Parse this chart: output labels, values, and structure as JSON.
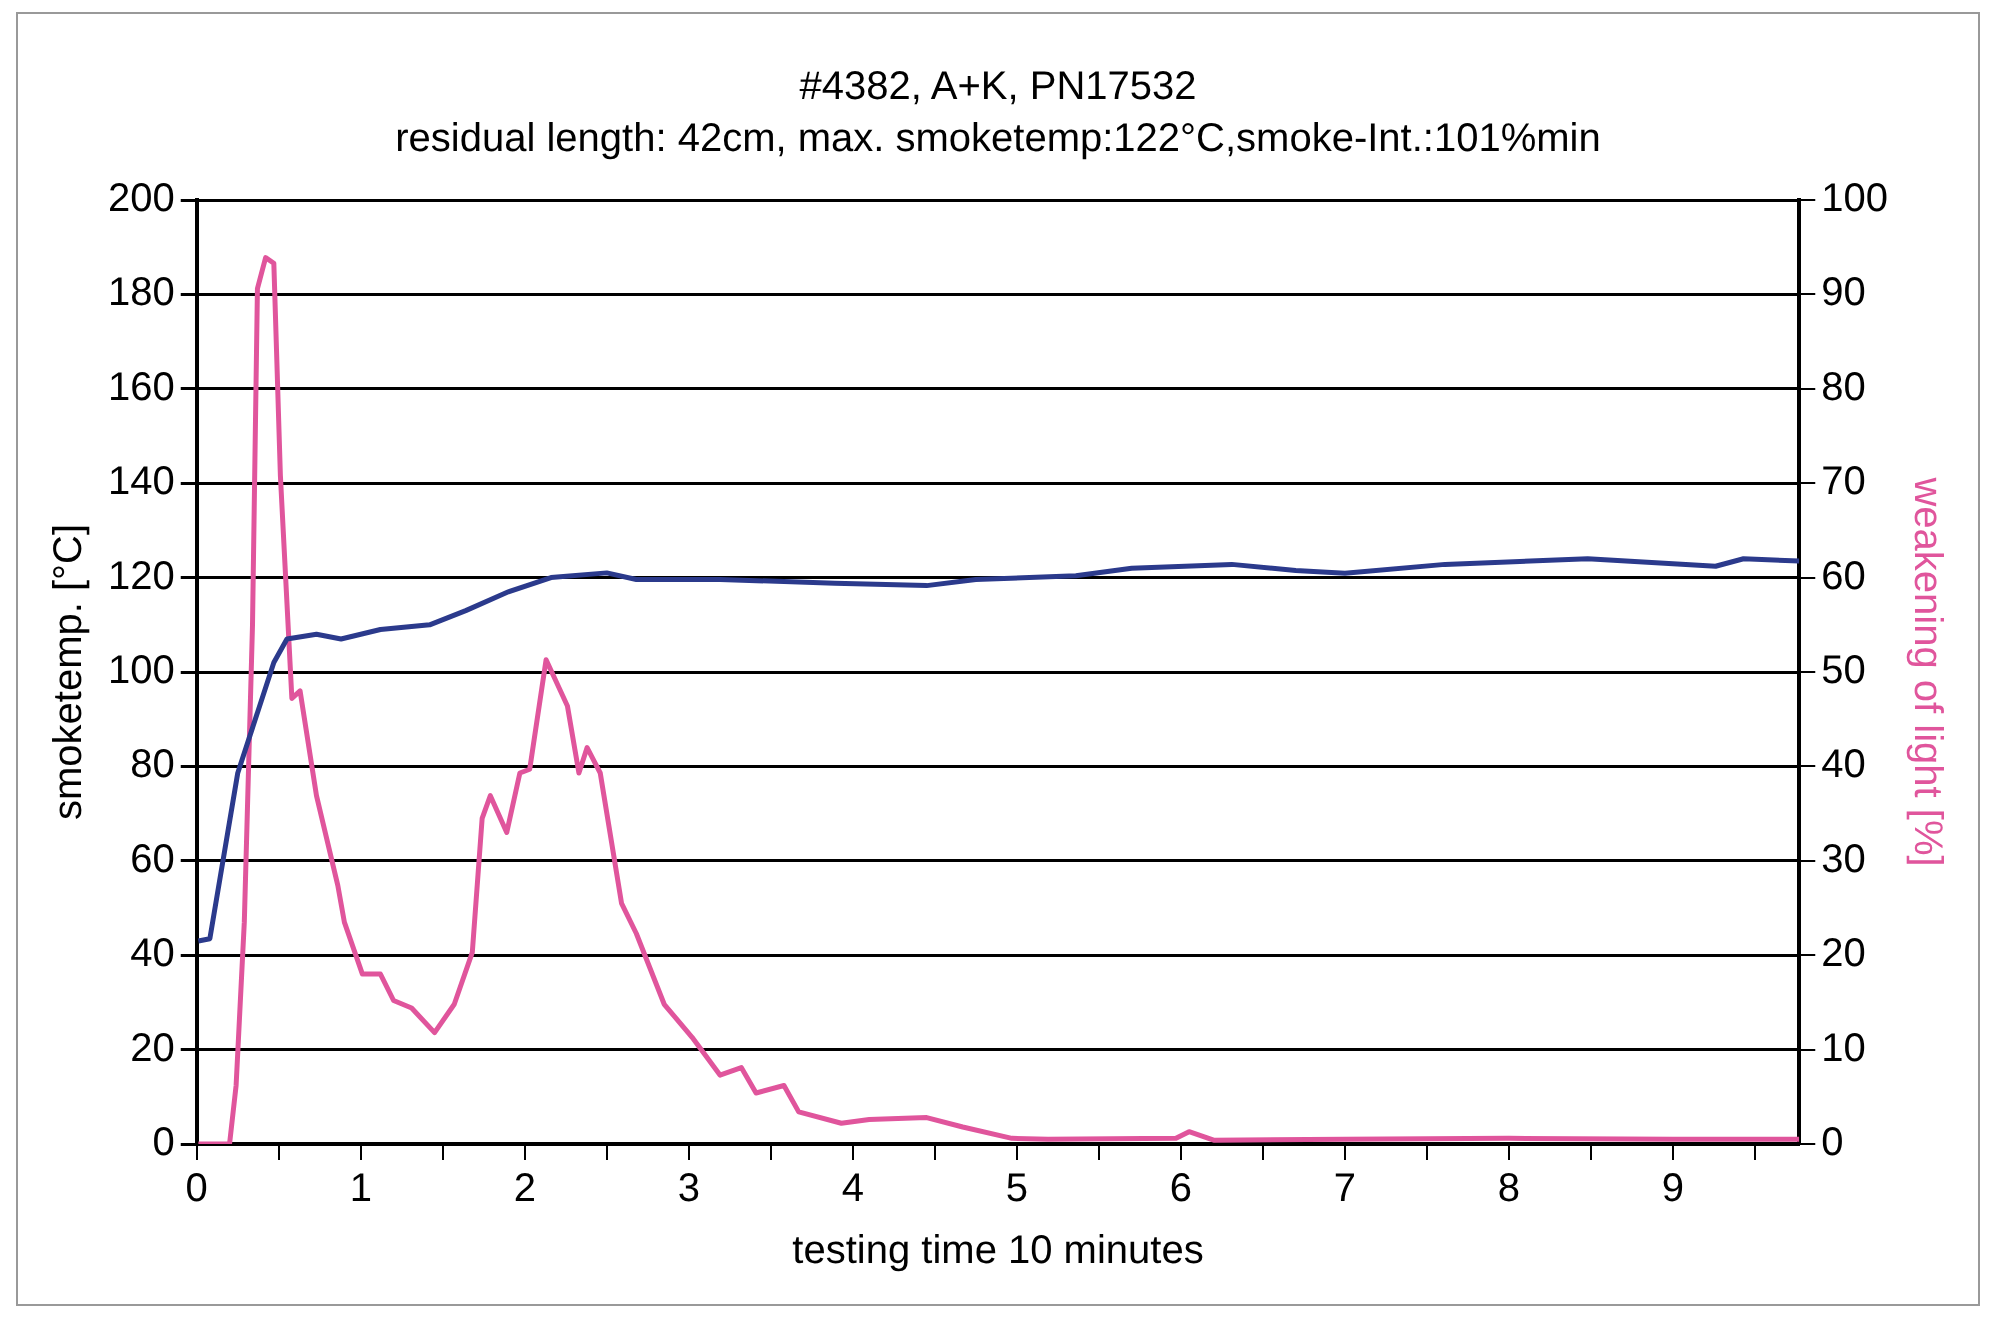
{
  "chart_data": {
    "type": "line",
    "title": "#4382, A+K, PN17532",
    "subtitle": "residual length: 42cm, max. smoketemp:122°C,smoke-Int.:101%min",
    "xlabel": "testing time 10 minutes",
    "ylabel": "smoketemp. [°C]",
    "y2label": "weakening of light [%]",
    "xlim": [
      0,
      9.77
    ],
    "xticks": [
      0,
      {
        "value": 0.5,
        "label": null
      },
      1,
      {
        "value": 1.5,
        "label": null
      },
      2,
      {
        "value": 2.5,
        "label": null
      },
      3,
      {
        "value": 3.5,
        "label": null
      },
      4,
      {
        "value": 4.5,
        "label": null
      },
      5,
      {
        "value": 5.5,
        "label": null
      },
      6,
      {
        "value": 6.5,
        "label": null
      },
      7,
      {
        "value": 7.5,
        "label": null
      },
      8,
      {
        "value": 8.5,
        "label": null
      },
      9,
      {
        "value": 9.5,
        "label": null
      }
    ],
    "ylim": [
      0,
      200
    ],
    "yticks": [
      0,
      20,
      40,
      60,
      80,
      100,
      120,
      140,
      160,
      180,
      200
    ],
    "y2lim": [
      0,
      100
    ],
    "y2ticks": [
      0,
      10,
      20,
      30,
      40,
      50,
      60,
      70,
      80,
      90,
      100
    ],
    "grid": "y",
    "legend": false,
    "marker": "none",
    "series": [
      {
        "color": "#2b3a8c",
        "x": [
          0.01,
          0.08,
          0.25,
          0.47,
          0.55,
          0.73,
          0.88,
          1.12,
          1.42,
          1.64,
          1.9,
          2.16,
          2.5,
          2.68,
          3.19,
          3.89,
          4.45,
          4.75,
          5.36,
          5.7,
          6.31,
          6.7,
          7.0,
          7.61,
          8.48,
          9.26,
          9.43,
          9.77
        ],
        "values": [
          43,
          43.5,
          78.6,
          102,
          107,
          108,
          107,
          109,
          110,
          113,
          117,
          120,
          121,
          119.6,
          119.6,
          118.8,
          118.3,
          119.6,
          120.4,
          122,
          122.8,
          121.5,
          120.9,
          122.8,
          124,
          122.4,
          124,
          123.5
        ]
      },
      {
        "color": "#e0559c",
        "axis": "y2",
        "x": [
          0.01,
          0.2,
          0.24,
          0.29,
          0.34,
          0.37,
          0.42,
          0.47,
          0.51,
          0.58,
          0.63,
          0.73,
          0.86,
          0.9,
          1.01,
          1.12,
          1.2,
          1.31,
          1.45,
          1.57,
          1.68,
          1.74,
          1.79,
          1.89,
          1.97,
          2.03,
          2.13,
          2.26,
          2.33,
          2.38,
          2.46,
          2.59,
          2.68,
          2.85,
          3.02,
          3.19,
          3.32,
          3.41,
          3.58,
          3.67,
          3.93,
          4.1,
          4.45,
          4.67,
          4.97,
          5.19,
          5.97,
          6.05,
          6.2,
          7.0,
          8.0,
          9.0,
          9.77
        ],
        "values": [
          0,
          0,
          6.2,
          23.5,
          55,
          90.6,
          93.9,
          93.3,
          70.8,
          47.2,
          48,
          36.9,
          27.4,
          23.5,
          18,
          18,
          15.2,
          14.4,
          11.8,
          14.8,
          20.3,
          34.5,
          36.9,
          33,
          39.3,
          39.7,
          51.3,
          46.4,
          39.3,
          42,
          39.3,
          25.5,
          22.3,
          14.8,
          11.3,
          7.3,
          8.1,
          5.4,
          6.2,
          3.4,
          2.2,
          2.6,
          2.8,
          1.8,
          0.6,
          0.5,
          0.6,
          1.3,
          0.4,
          0.5,
          0.6,
          0.5,
          0.5
        ]
      }
    ]
  }
}
